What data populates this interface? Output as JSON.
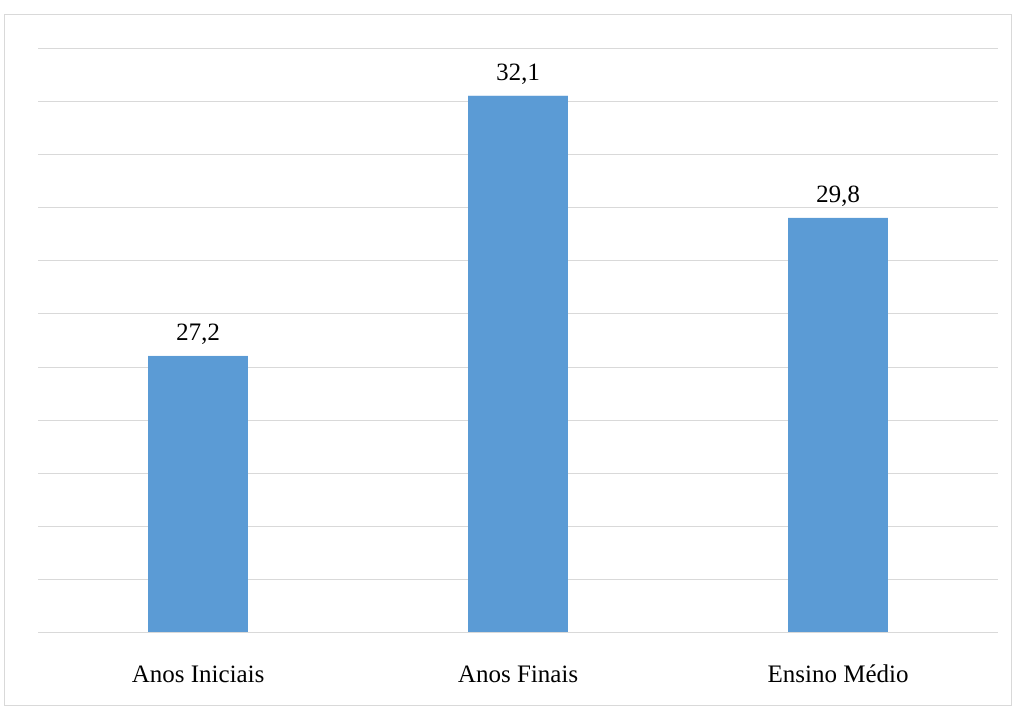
{
  "chart_data": {
    "type": "bar",
    "categories": [
      "Anos Iniciais",
      "Anos Finais",
      "Ensino Médio"
    ],
    "values": [
      27.2,
      32.1,
      29.8
    ],
    "data_labels": [
      "27,2",
      "32,1",
      "29,8"
    ],
    "title": "",
    "xlabel": "",
    "ylabel": "",
    "ylim": [
      22,
      33
    ],
    "grid": true,
    "legend": "none",
    "bar_color": "#5b9bd5",
    "grid_color": "#d9d9d9"
  }
}
